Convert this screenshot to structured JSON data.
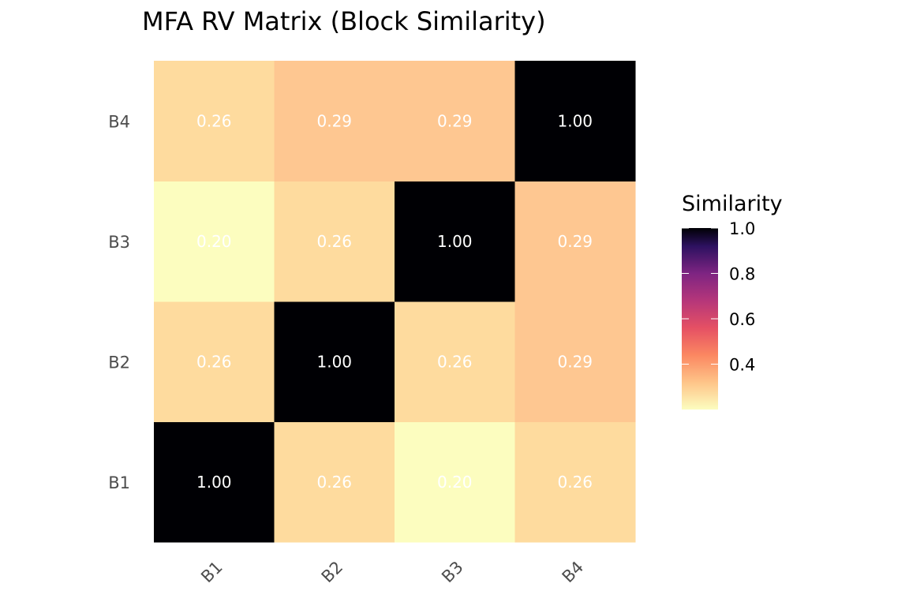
{
  "chart_data": {
    "type": "heatmap",
    "title": "MFA RV Matrix (Block Similarity)",
    "xlabel": "",
    "ylabel": "",
    "x_categories": [
      "B1",
      "B2",
      "B3",
      "B4"
    ],
    "y_categories": [
      "B1",
      "B2",
      "B3",
      "B4"
    ],
    "values": [
      [
        1.0,
        0.26,
        0.2,
        0.26
      ],
      [
        0.26,
        1.0,
        0.26,
        0.29
      ],
      [
        0.2,
        0.26,
        1.0,
        0.29
      ],
      [
        0.26,
        0.29,
        0.29,
        1.0
      ]
    ],
    "cell_labels": [
      [
        "1.00",
        "0.26",
        "0.20",
        "0.26"
      ],
      [
        "0.26",
        "1.00",
        "0.26",
        "0.29"
      ],
      [
        "0.20",
        "0.26",
        "1.00",
        "0.29"
      ],
      [
        "0.26",
        "0.29",
        "0.29",
        "1.00"
      ]
    ],
    "x_tick_rotation": 45,
    "legend": {
      "title": "Similarity",
      "placement": "right",
      "ticks": [
        0.4,
        0.6,
        0.8,
        1.0
      ],
      "tick_labels": [
        "0.4",
        "0.6",
        "0.8",
        "1.0"
      ],
      "range": [
        0.2,
        1.0
      ]
    },
    "colorscale": "magma-reversed",
    "grid": false
  }
}
